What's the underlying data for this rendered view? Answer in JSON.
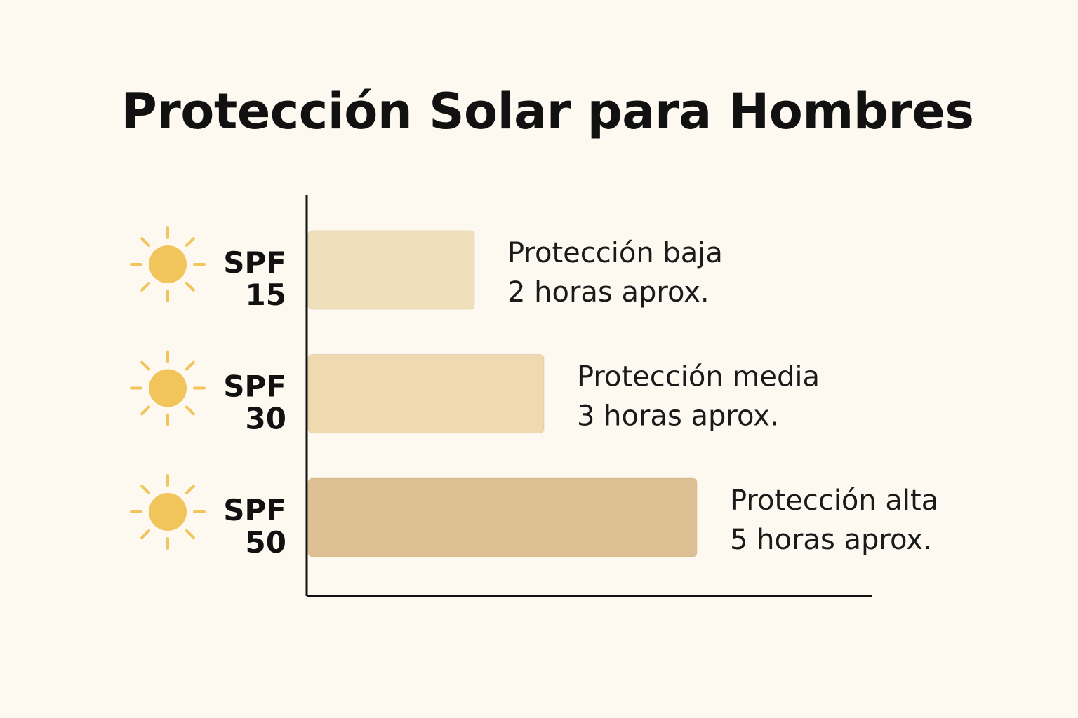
{
  "chart_data": {
    "type": "bar",
    "orientation": "horizontal",
    "title": "Protección Solar para Hombres",
    "xlabel": "",
    "ylabel": "",
    "categories": [
      "SPF 15",
      "SPF 30",
      "SPF 50"
    ],
    "category_lines": [
      [
        "SPF",
        "15"
      ],
      [
        "SPF",
        "30"
      ],
      [
        "SPF",
        "50"
      ]
    ],
    "values": [
      2,
      3,
      5
    ],
    "xlim": [
      0,
      5.8
    ],
    "grid": false,
    "annotations": [
      [
        "Protección baja",
        "2 horas aprox."
      ],
      [
        "Protección media",
        "3 horas aprox."
      ],
      [
        "Protección alta",
        "5 horas aprox."
      ]
    ],
    "bar_colors": [
      "#f0dfbb",
      "#eed9b0",
      "#dcbf92"
    ],
    "category_icon": "sun-icon",
    "icon_color": "#f2c55c"
  }
}
